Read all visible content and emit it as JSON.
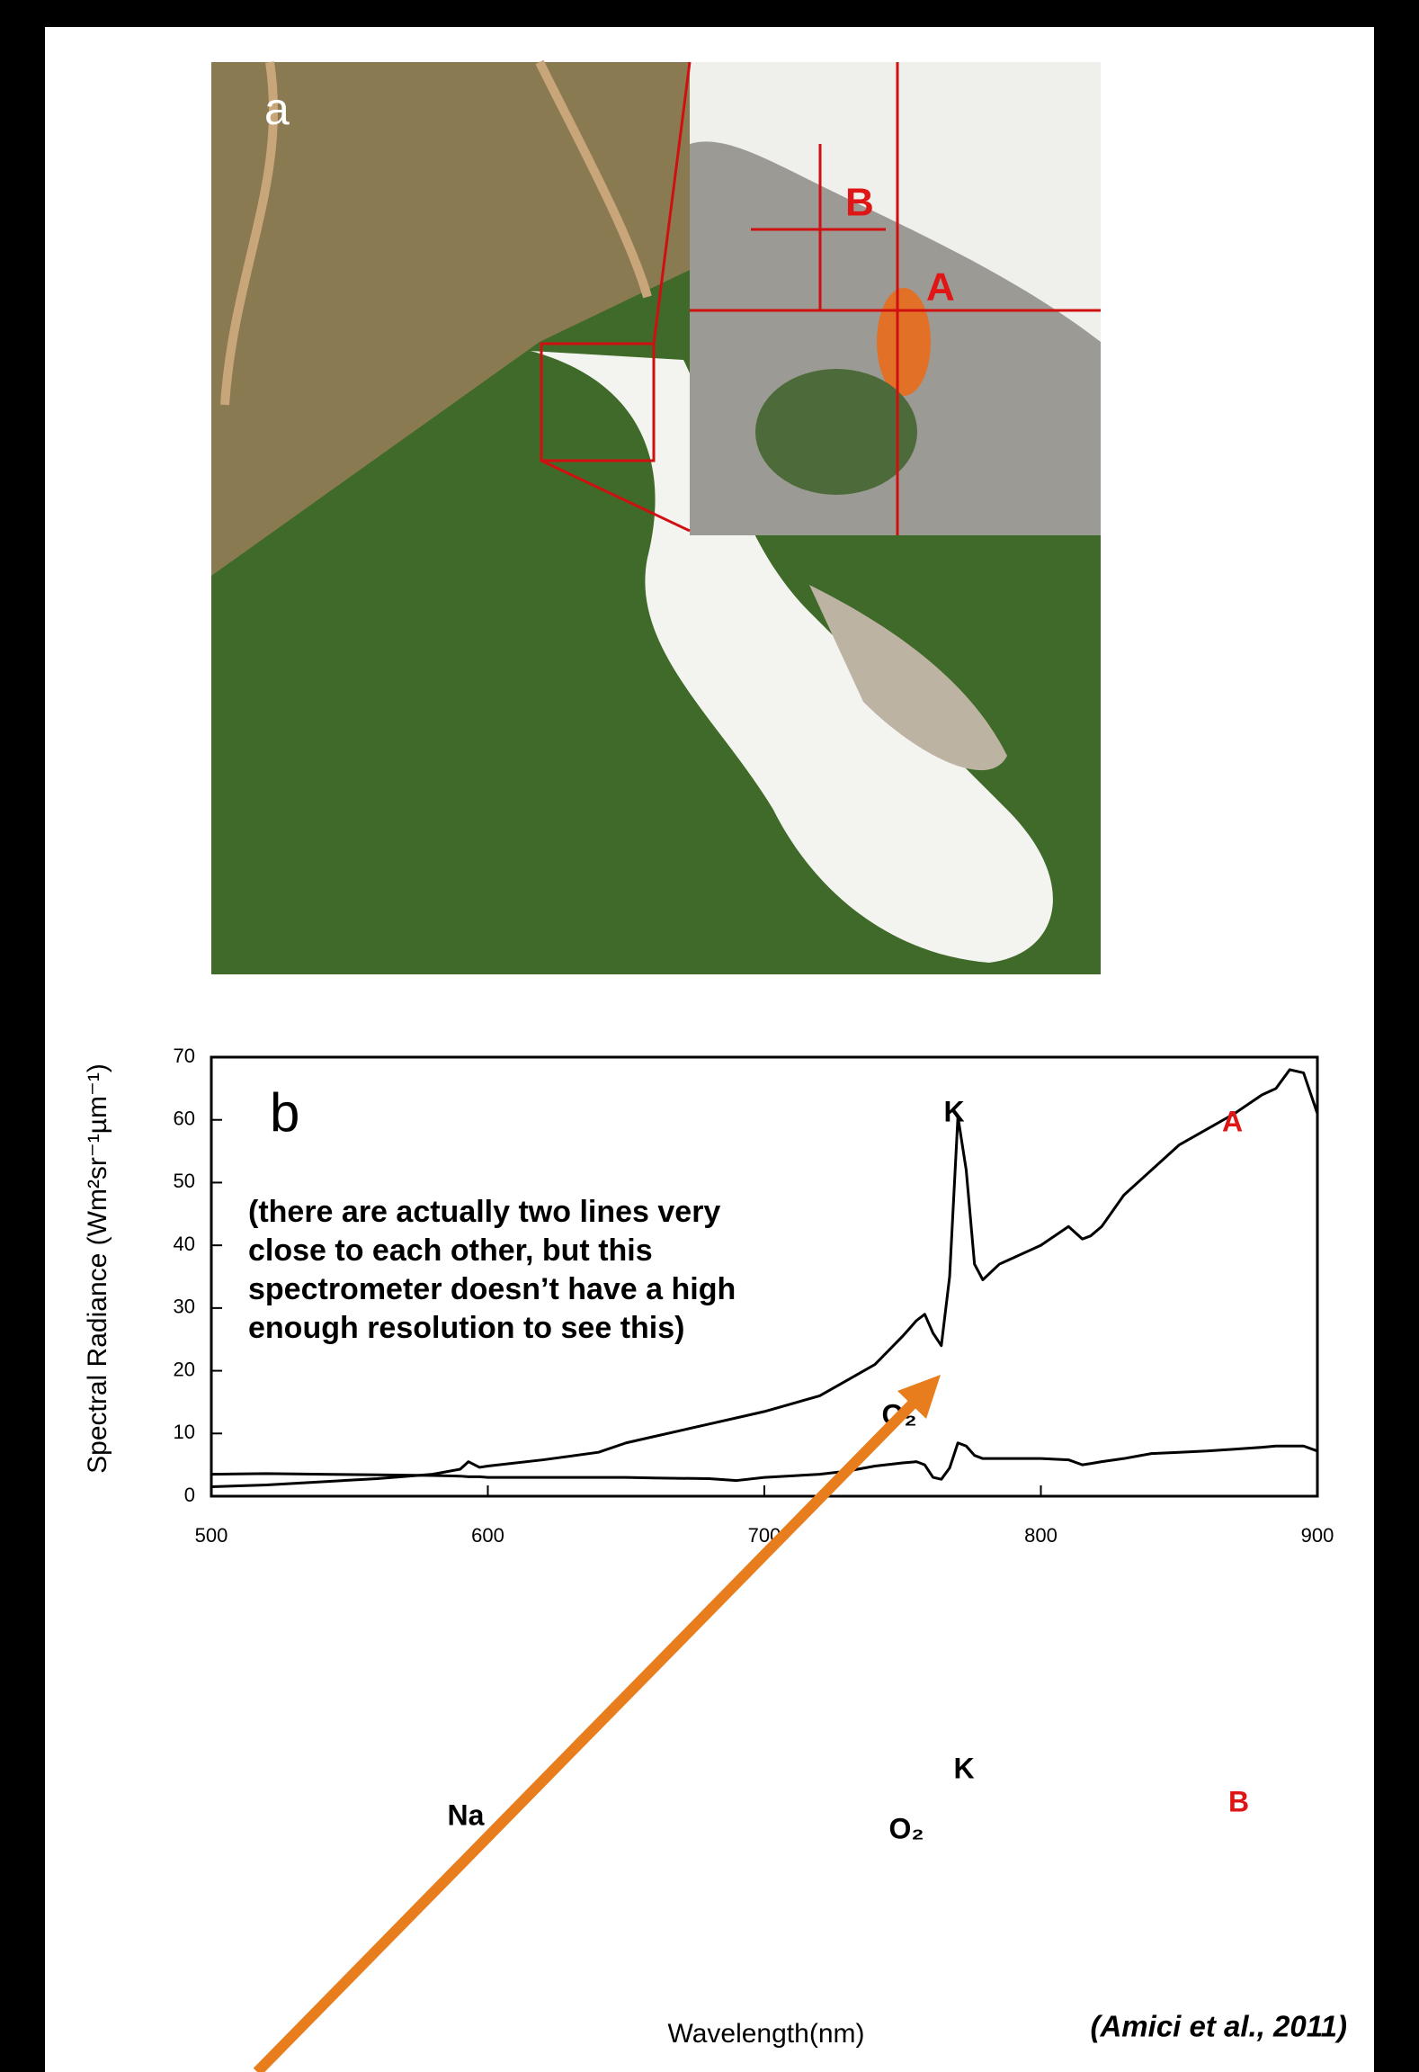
{
  "figure_a": {
    "label": "a",
    "markers": [
      "A",
      "B"
    ]
  },
  "chart_data": {
    "type": "line",
    "panel_label": "b",
    "xlabel": "Wavelength(nm)",
    "ylabel": "Spectral Radiance (Wm²sr⁻¹µm⁻¹)",
    "xlim": [
      500,
      900
    ],
    "ylim": [
      0,
      70
    ],
    "xticks": [
      500,
      600,
      700,
      800,
      900
    ],
    "yticks": [
      0,
      10,
      20,
      30,
      40,
      50,
      60,
      70
    ],
    "x": [
      500,
      520,
      540,
      560,
      580,
      590,
      593,
      597,
      600,
      620,
      640,
      650,
      660,
      680,
      690,
      700,
      720,
      730,
      740,
      750,
      755,
      758,
      761,
      764,
      767,
      770,
      773,
      776,
      779,
      785,
      790,
      800,
      810,
      815,
      818,
      822,
      830,
      840,
      850,
      860,
      870,
      880,
      885,
      890,
      895,
      900
    ],
    "series": [
      {
        "name": "A",
        "color": "#000000",
        "values": [
          1.5,
          1.8,
          2.3,
          2.8,
          3.5,
          4.3,
          5.5,
          4.6,
          4.8,
          5.8,
          7,
          8.5,
          9.5,
          11.5,
          12.5,
          13.5,
          16,
          18.5,
          21,
          25.5,
          28,
          29,
          26,
          24,
          35,
          60.5,
          52,
          37,
          34.5,
          37,
          38,
          40,
          43,
          41,
          41.5,
          43,
          48,
          52,
          56,
          58.5,
          61,
          64,
          65,
          68,
          67.5,
          61
        ]
      },
      {
        "name": "B",
        "color": "#000000",
        "values": [
          3.5,
          3.6,
          3.5,
          3.4,
          3.3,
          3.2,
          3.1,
          3.1,
          3,
          3,
          3,
          3,
          2.9,
          2.8,
          2.5,
          3,
          3.5,
          4,
          4.8,
          5.3,
          5.5,
          5,
          3,
          2.7,
          4.5,
          8.5,
          8,
          6.5,
          6,
          6,
          6,
          6,
          5.8,
          5,
          5.2,
          5.5,
          6,
          6.8,
          7,
          7.2,
          7.5,
          7.8,
          8,
          8,
          8,
          7.2
        ]
      }
    ],
    "annotations": [
      "K",
      "O₂",
      "Na",
      "O₂",
      "K"
    ],
    "note": [
      "(there are actually two lines very",
      "close to each other, but this",
      "spectrometer doesn’t have a high",
      "enough resolution to see this)"
    ]
  },
  "citation": "(Amici et al., 2011)"
}
